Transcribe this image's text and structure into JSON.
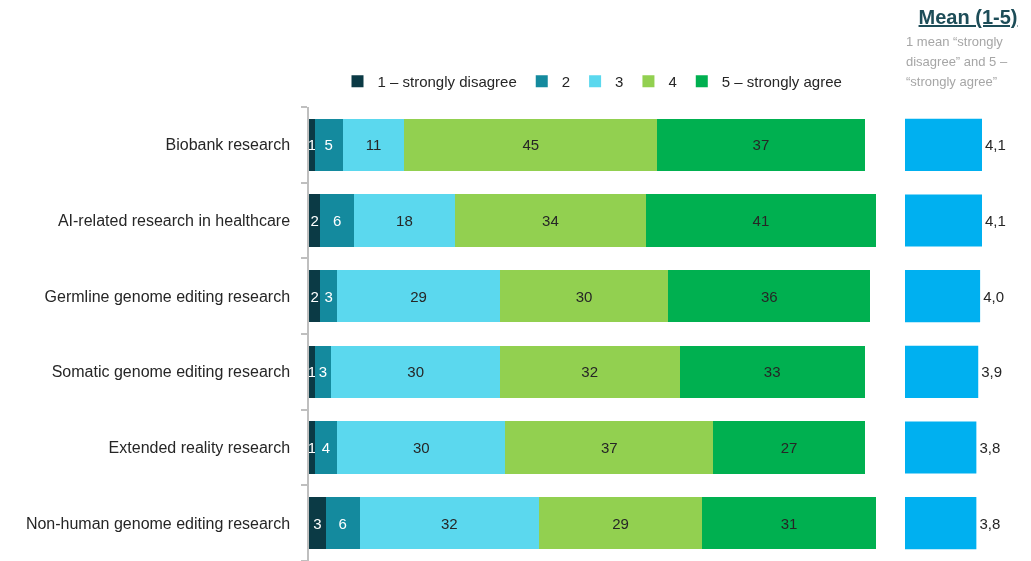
{
  "chart_data": [
    {
      "type": "bar",
      "orientation": "horizontal",
      "stacked": true,
      "categories": [
        "Biobank research",
        "AI-related research in healthcare",
        "Germline genome editing research",
        "Somatic genome editing research",
        "Extended reality research",
        "Non-human genome editing research"
      ],
      "series": [
        {
          "name": "1 – strongly disagree",
          "color": "#0b3a45",
          "values": [
            1,
            2,
            2,
            1,
            1,
            3
          ]
        },
        {
          "name": "2",
          "color": "#148a9e",
          "values": [
            5,
            6,
            3,
            3,
            4,
            6
          ]
        },
        {
          "name": "3",
          "color": "#5bd8ee",
          "values": [
            11,
            18,
            29,
            30,
            30,
            32
          ]
        },
        {
          "name": "4",
          "color": "#92d050",
          "values": [
            45,
            34,
            30,
            32,
            37,
            29
          ]
        },
        {
          "name": "5 – strongly agree",
          "color": "#00b050",
          "values": [
            37,
            41,
            36,
            33,
            27,
            31
          ]
        }
      ],
      "data_labels": true,
      "xlim": [
        0,
        101
      ],
      "legend": "top",
      "tick_labels": "y"
    },
    {
      "type": "bar",
      "orientation": "horizontal",
      "title": "Mean (1-5)",
      "subtitle": "1 mean “strongly disagree” and 5 – “strongly agree”",
      "categories": [
        null,
        null,
        null,
        null,
        null,
        null
      ],
      "values": [
        4.1,
        4.1,
        4.0,
        3.9,
        3.8,
        3.8
      ],
      "value_labels": [
        "4,1",
        "4,1",
        "4,0",
        "3,9",
        "3,8",
        "3,8"
      ],
      "color": "#00b0f0",
      "xlim": [
        0,
        4.1
      ]
    }
  ]
}
